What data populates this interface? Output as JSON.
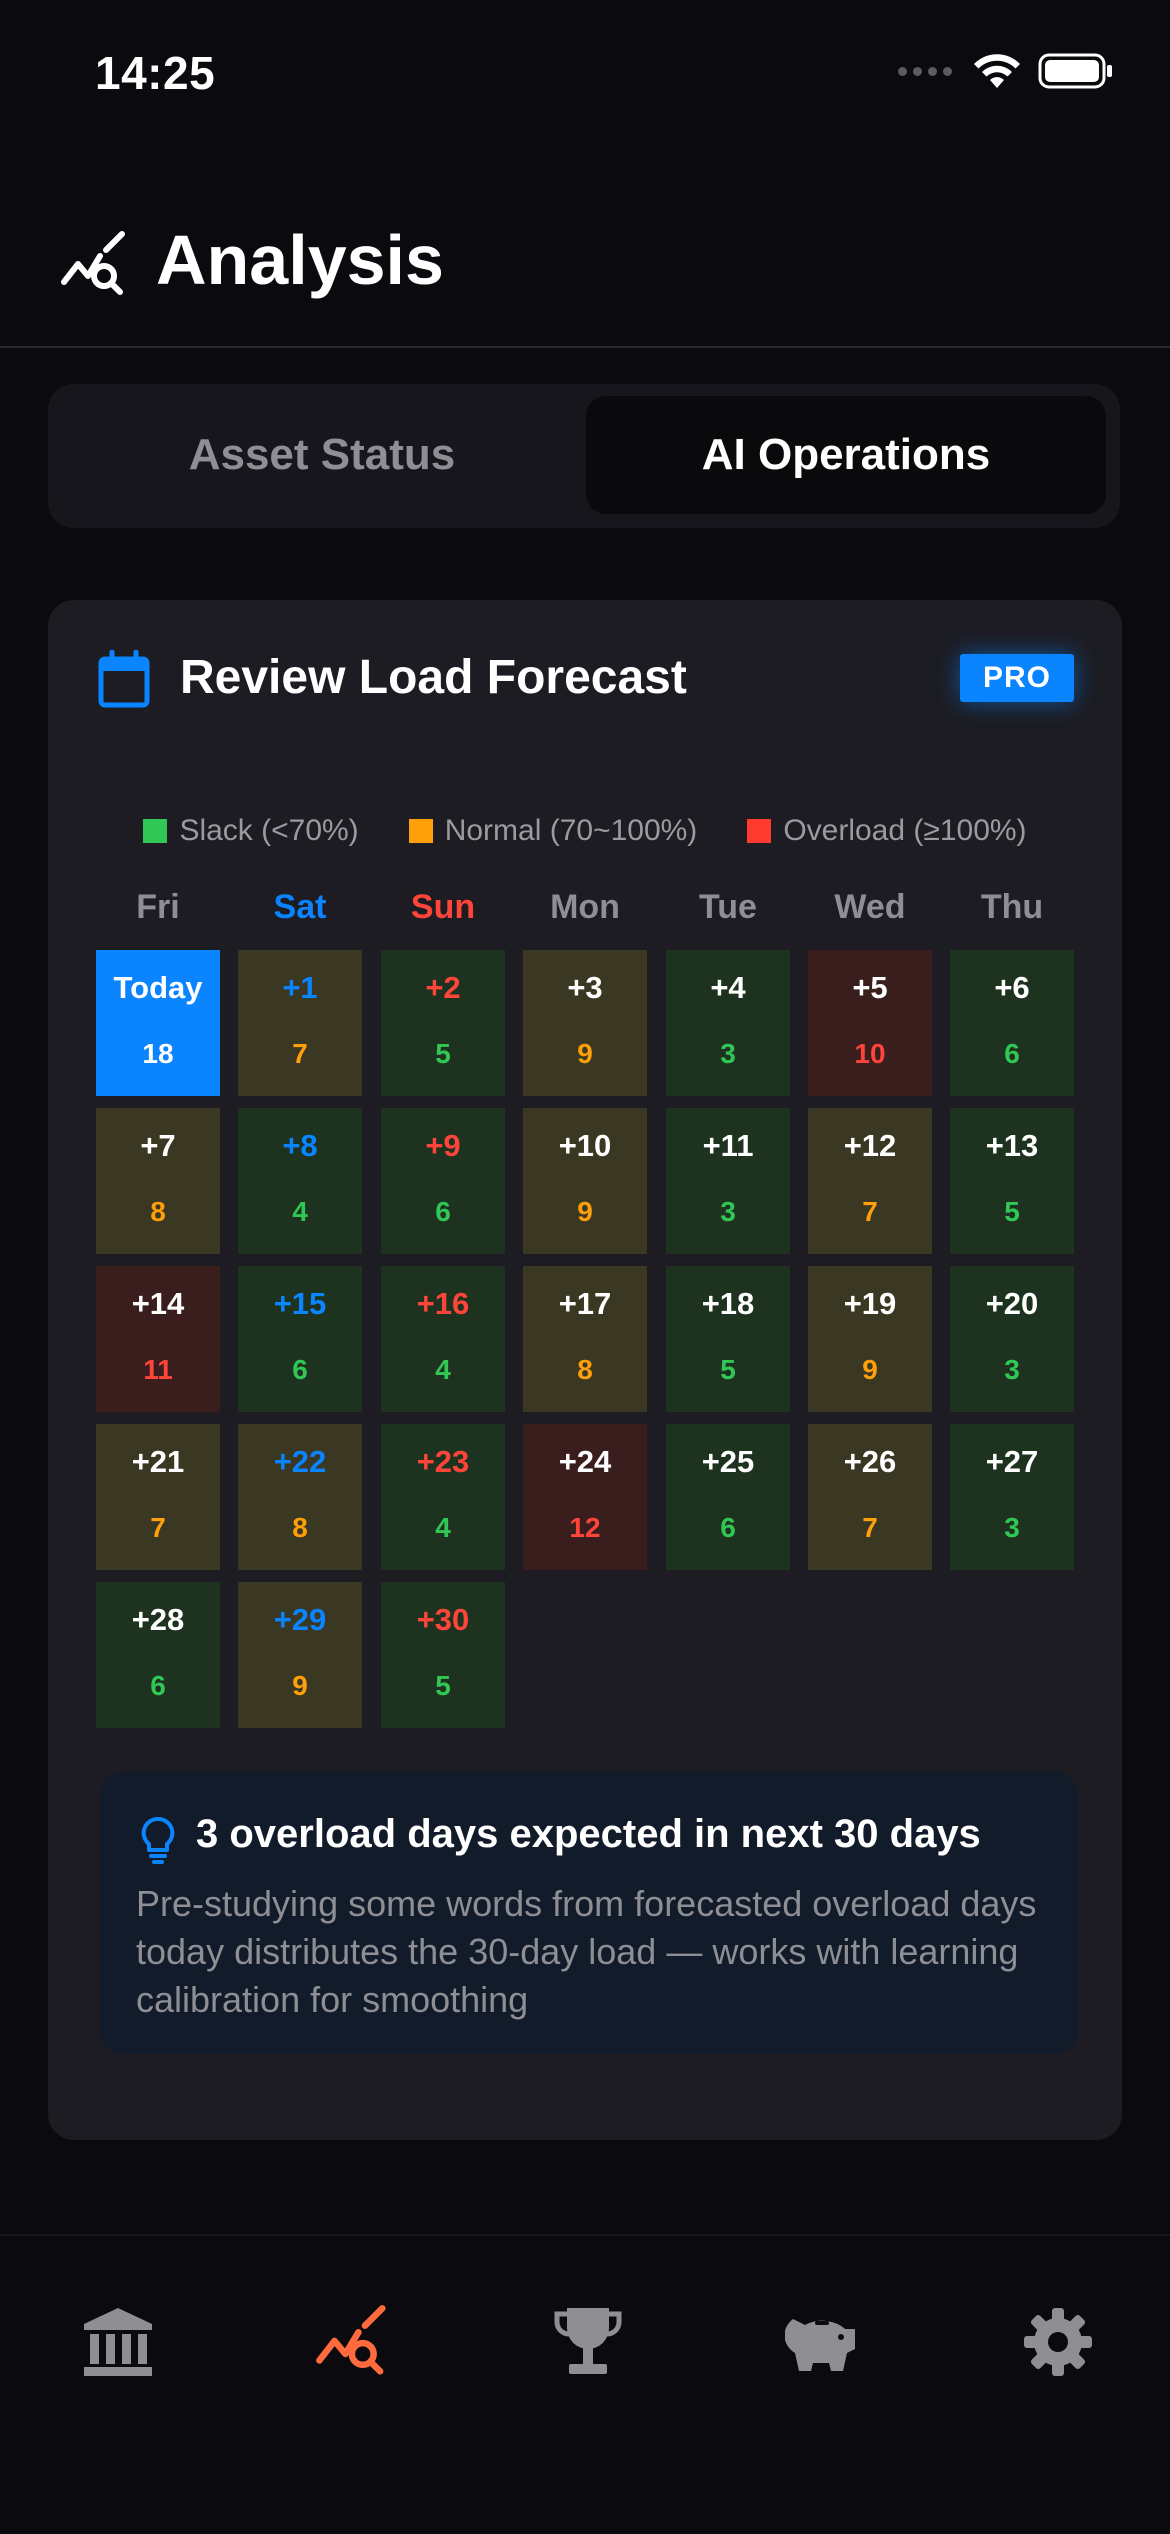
{
  "status_bar": {
    "time": "14:25"
  },
  "header": {
    "title": "Analysis"
  },
  "segments": {
    "left": "Asset Status",
    "right": "AI Operations",
    "selected": "AI Operations"
  },
  "card": {
    "title": "Review Load Forecast",
    "badge": "PRO"
  },
  "legend": [
    {
      "label": "Slack (<70%)",
      "color": "#30c754"
    },
    {
      "label": "Normal (70~100%)",
      "color": "#ff9f0a"
    },
    {
      "label": "Overload (≥100%)",
      "color": "#ff3b30"
    }
  ],
  "weekdays": [
    {
      "label": "Fri",
      "color": "#8e8e95"
    },
    {
      "label": "Sat",
      "color": "#0a84ff"
    },
    {
      "label": "Sun",
      "color": "#ff453a"
    },
    {
      "label": "Mon",
      "color": "#8e8e95"
    },
    {
      "label": "Tue",
      "color": "#8e8e95"
    },
    {
      "label": "Wed",
      "color": "#8e8e95"
    },
    {
      "label": "Thu",
      "color": "#8e8e95"
    }
  ],
  "days": [
    {
      "label": "Today",
      "count": "18",
      "level": "today"
    },
    {
      "label": "+1",
      "count": "7",
      "level": "normal"
    },
    {
      "label": "+2",
      "count": "5",
      "level": "slack"
    },
    {
      "label": "+3",
      "count": "9",
      "level": "normal"
    },
    {
      "label": "+4",
      "count": "3",
      "level": "slack"
    },
    {
      "label": "+5",
      "count": "10",
      "level": "overload"
    },
    {
      "label": "+6",
      "count": "6",
      "level": "slack"
    },
    {
      "label": "+7",
      "count": "8",
      "level": "normal"
    },
    {
      "label": "+8",
      "count": "4",
      "level": "slack"
    },
    {
      "label": "+9",
      "count": "6",
      "level": "slack"
    },
    {
      "label": "+10",
      "count": "9",
      "level": "normal"
    },
    {
      "label": "+11",
      "count": "3",
      "level": "slack"
    },
    {
      "label": "+12",
      "count": "7",
      "level": "normal"
    },
    {
      "label": "+13",
      "count": "5",
      "level": "slack"
    },
    {
      "label": "+14",
      "count": "11",
      "level": "overload"
    },
    {
      "label": "+15",
      "count": "6",
      "level": "slack"
    },
    {
      "label": "+16",
      "count": "4",
      "level": "slack"
    },
    {
      "label": "+17",
      "count": "8",
      "level": "normal"
    },
    {
      "label": "+18",
      "count": "5",
      "level": "slack"
    },
    {
      "label": "+19",
      "count": "9",
      "level": "normal"
    },
    {
      "label": "+20",
      "count": "3",
      "level": "slack"
    },
    {
      "label": "+21",
      "count": "7",
      "level": "normal"
    },
    {
      "label": "+22",
      "count": "8",
      "level": "normal"
    },
    {
      "label": "+23",
      "count": "4",
      "level": "slack"
    },
    {
      "label": "+24",
      "count": "12",
      "level": "overload"
    },
    {
      "label": "+25",
      "count": "6",
      "level": "slack"
    },
    {
      "label": "+26",
      "count": "7",
      "level": "normal"
    },
    {
      "label": "+27",
      "count": "3",
      "level": "slack"
    },
    {
      "label": "+28",
      "count": "6",
      "level": "slack"
    },
    {
      "label": "+29",
      "count": "9",
      "level": "normal"
    },
    {
      "label": "+30",
      "count": "5",
      "level": "slack"
    }
  ],
  "insight": {
    "title": "3 overload days expected in next 30 days",
    "body": "Pre-studying some words from forecasted overload days today distributes the 30-day load — works with learning calibration for smoothing"
  },
  "tabbar": {
    "items": [
      {
        "icon": "bank-icon",
        "color": "#8e8e93"
      },
      {
        "icon": "analysis-icon",
        "color": "#ff6b3d"
      },
      {
        "icon": "trophy-icon",
        "color": "#8e8e93"
      },
      {
        "icon": "piggy-bank-icon",
        "color": "#8e8e93"
      },
      {
        "icon": "gear-icon",
        "color": "#8e8e93"
      }
    ],
    "selected": "analysis-icon"
  },
  "colors": {
    "accent": "#0a84ff",
    "slack": "#30c754",
    "normal": "#ff9f0a",
    "overload": "#ff3b30"
  }
}
